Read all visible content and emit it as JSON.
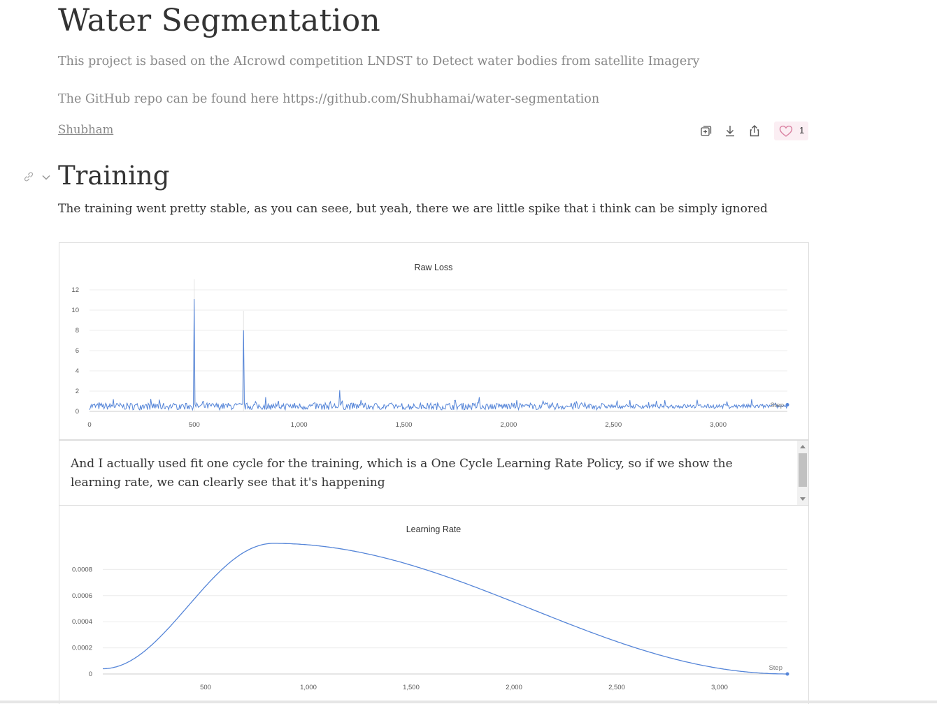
{
  "report": {
    "title": "Water Segmentation",
    "description": "This project is based on the AIcrowd competition LNDST to Detect water bodies from satellite Imagery",
    "github_line": "The GitHub repo can be found here https://github.com/Shubhamai/water-segmentation",
    "author": "Shubham",
    "like_count": "1",
    "action_icons": [
      "clone-icon",
      "download-icon",
      "share-icon",
      "heart-icon"
    ]
  },
  "section": {
    "title": "Training",
    "paragraph": "The training went pretty stable, as you can seee, but yeah, there we are little spike that i think can be simply ignored",
    "second_paragraph": "And I actually used fit one cycle for the training, which is a One Cycle Learning Rate Policy, so if we show the learning rate, we can clearly see that it's happening"
  },
  "colors": {
    "line": "#5585d8",
    "grid": "#ececec",
    "like_bg": "#fbeef3",
    "heart": "#d97fa0"
  },
  "chart_data": [
    {
      "type": "line",
      "title": "Raw Loss",
      "x_label": "Step",
      "xlim": [
        0,
        3330
      ],
      "ylim": [
        0,
        12
      ],
      "x_ticks": [
        0,
        500,
        1000,
        1500,
        2000,
        2500,
        3000
      ],
      "x_tick_labels": [
        "0",
        "500",
        "1,000",
        "1,500",
        "2,000",
        "2,500",
        "3,000"
      ],
      "y_ticks": [
        0,
        2,
        4,
        6,
        8,
        10,
        12
      ],
      "y_tick_labels": [
        "0",
        "2",
        "4",
        "6",
        "8",
        "10",
        "12"
      ],
      "grid": true,
      "baseline": {
        "x_range": [
          0,
          3330
        ],
        "typical": 0.5,
        "noise": 0.35
      },
      "spikes": [
        {
          "x": 500,
          "y": 11.1
        },
        {
          "x": 735,
          "y": 8.0
        },
        {
          "x": 1195,
          "y": 2.1
        },
        {
          "x": 115,
          "y": 1.2
        },
        {
          "x": 840,
          "y": 1.4
        },
        {
          "x": 1860,
          "y": 1.4
        },
        {
          "x": 2040,
          "y": 1.1
        },
        {
          "x": 3160,
          "y": 1.2
        }
      ]
    },
    {
      "type": "line",
      "title": "Learning Rate",
      "x_label": "Step",
      "xlim": [
        0,
        3330
      ],
      "ylim": [
        0,
        0.001
      ],
      "x_ticks": [
        500,
        1000,
        1500,
        2000,
        2500,
        3000
      ],
      "x_tick_labels": [
        "500",
        "1,000",
        "1,500",
        "2,000",
        "2,500",
        "3,000"
      ],
      "y_ticks": [
        0,
        0.0002,
        0.0004,
        0.0006,
        0.0008
      ],
      "y_tick_labels": [
        "0",
        "0.0002",
        "0.0004",
        "0.0006",
        "0.0008"
      ],
      "grid": true,
      "schedule": {
        "start_step": 0,
        "peak_step": 830,
        "end_step": 3330,
        "max_lr": 0.001,
        "start_lr": 4e-05,
        "end_lr": 1e-07
      }
    }
  ]
}
